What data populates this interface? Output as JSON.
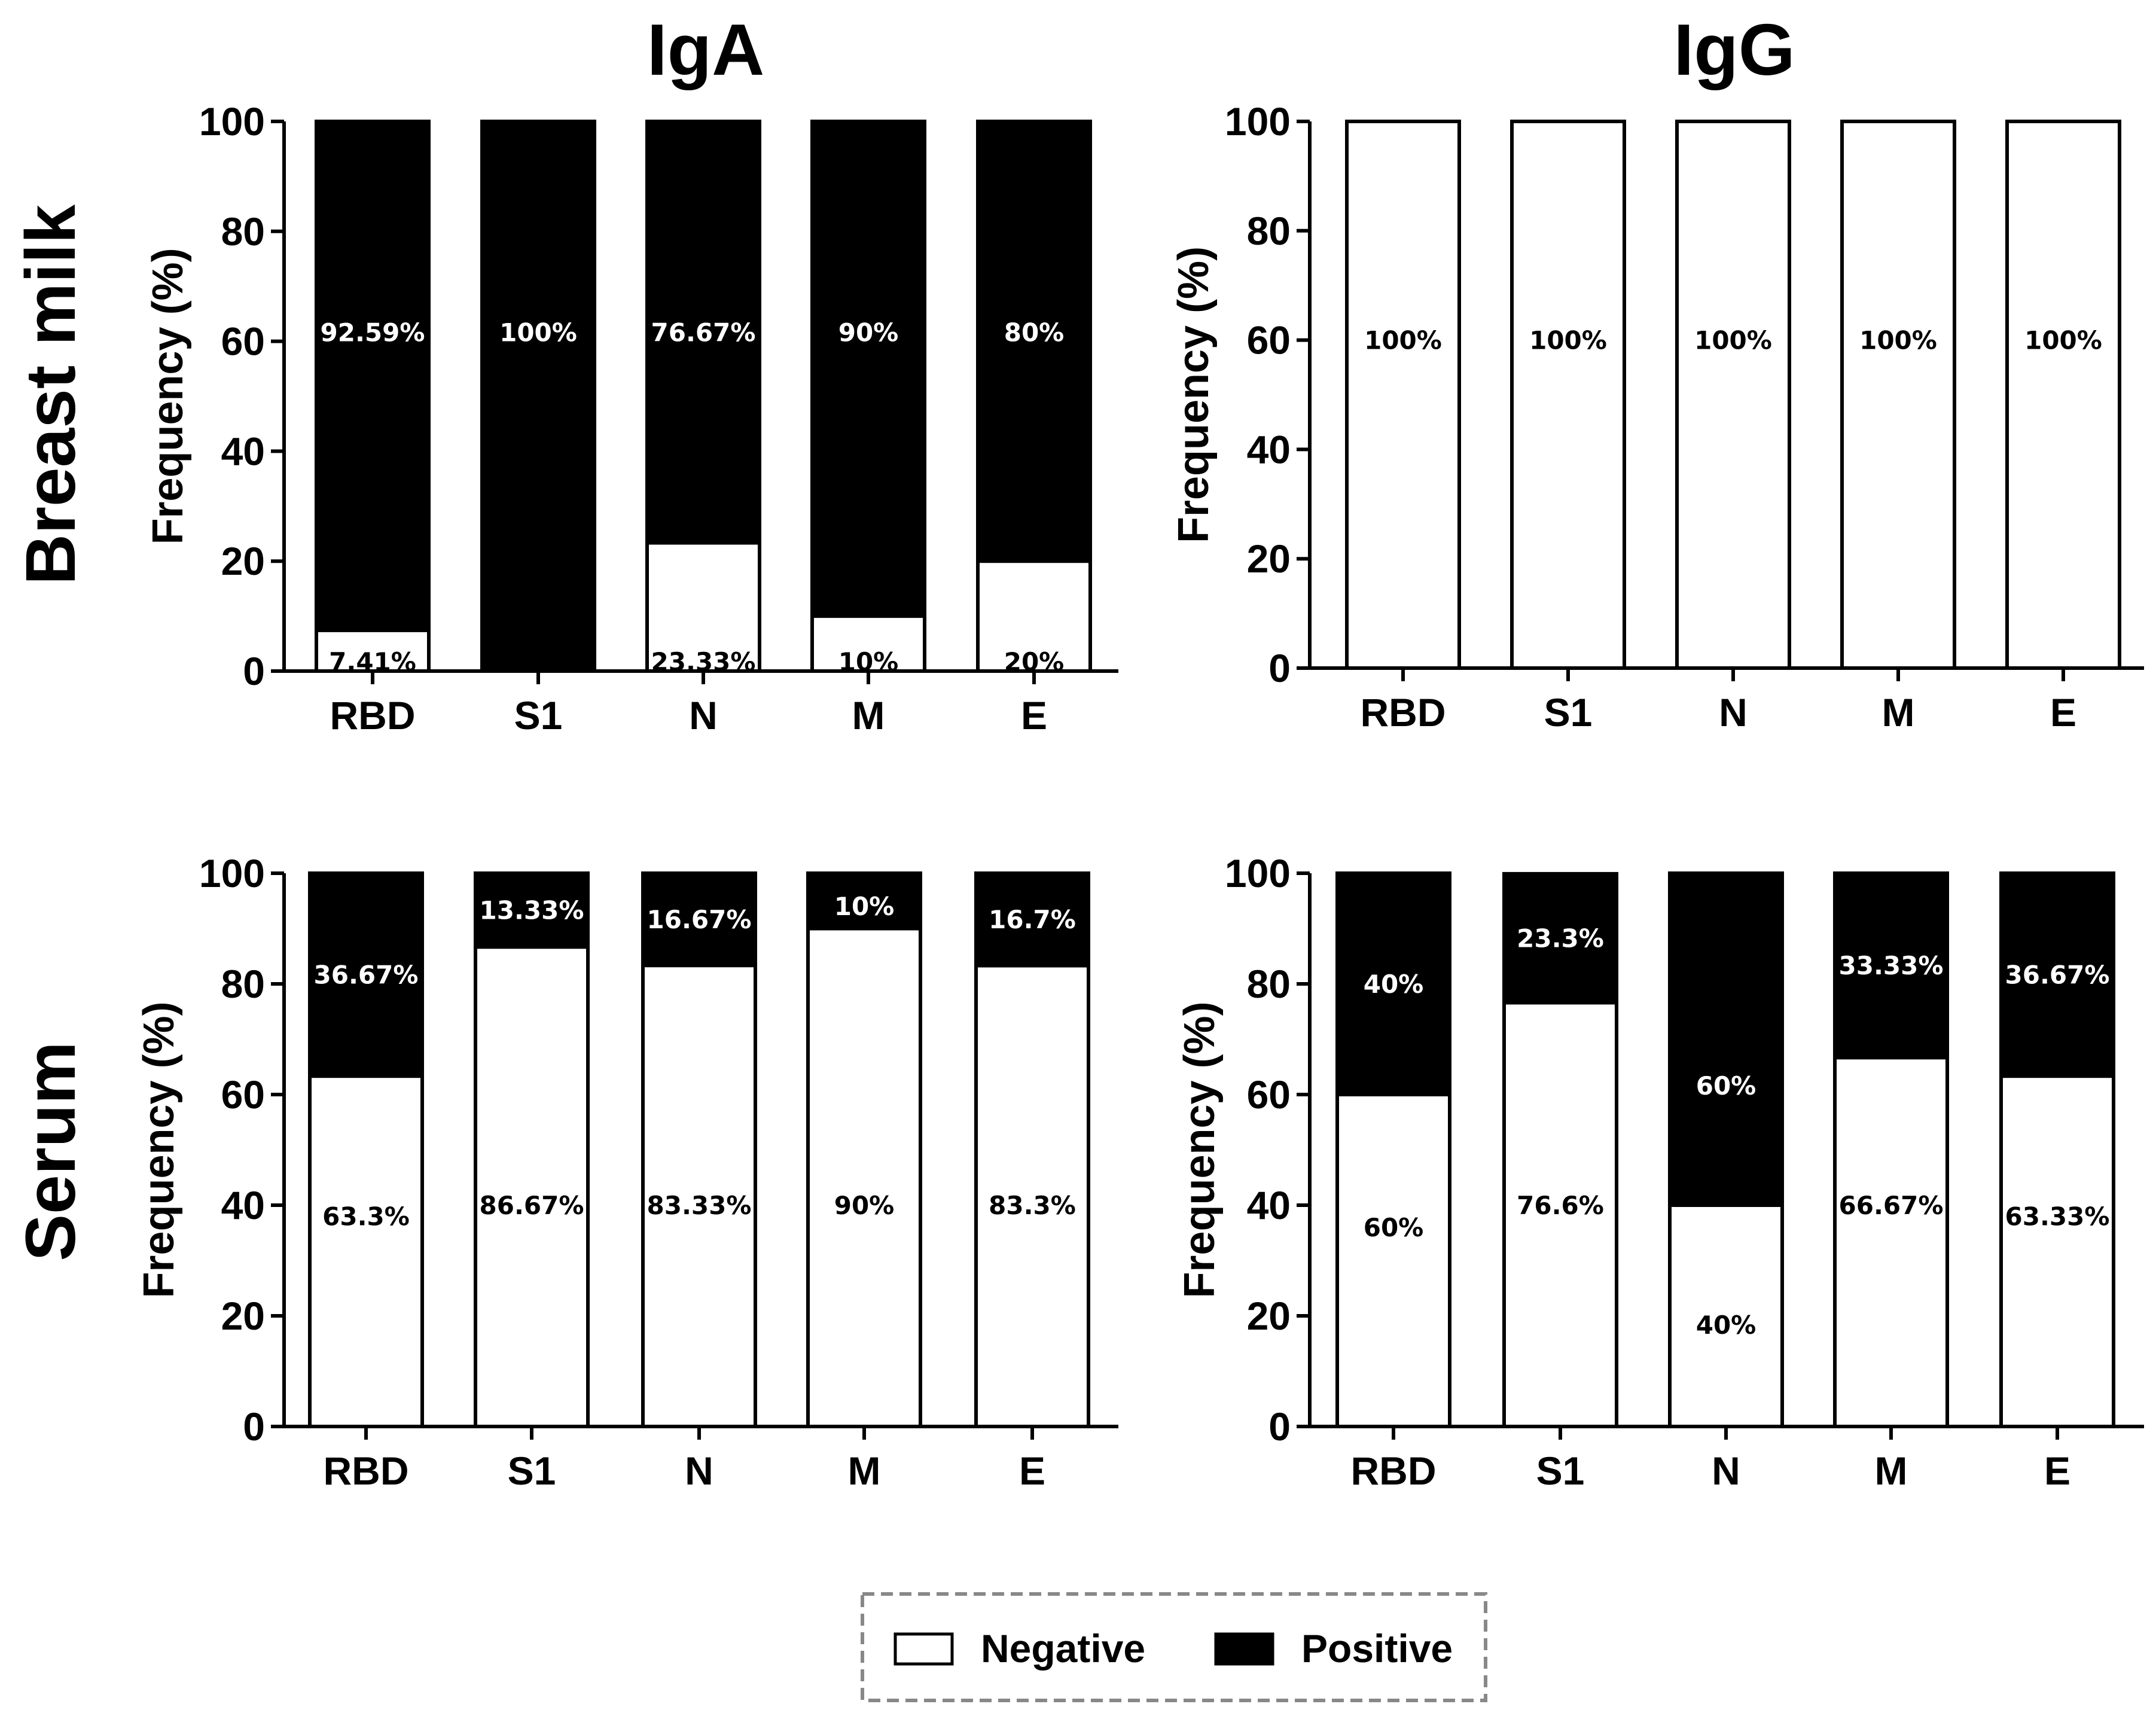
{
  "figure": {
    "column_titles": [
      "IgA",
      "IgG"
    ],
    "row_titles": [
      "Breast milk",
      "Serum"
    ],
    "legend": {
      "items": [
        {
          "label": "Negative",
          "color": "#ffffff"
        },
        {
          "label": "Positive",
          "color": "#000000"
        }
      ]
    }
  },
  "chart_data": [
    {
      "type": "bar",
      "stacked": true,
      "title": "IgA",
      "row": "Breast milk",
      "ylabel": "Frequency (%)",
      "xlabel": "",
      "ylim": [
        0,
        100
      ],
      "yticks": [
        0,
        20,
        40,
        60,
        80,
        100
      ],
      "categories": [
        "RBD",
        "S1",
        "N",
        "M",
        "E"
      ],
      "series": [
        {
          "name": "Negative",
          "values": [
            7.41,
            0,
            23.33,
            10,
            20
          ],
          "labels": [
            "7.41%",
            "",
            "23.33%",
            "10%",
            "20%"
          ]
        },
        {
          "name": "Positive",
          "values": [
            92.59,
            100,
            76.67,
            90,
            80
          ],
          "labels": [
            "92.59%",
            "100%",
            "76.67%",
            "90%",
            "80%"
          ]
        }
      ]
    },
    {
      "type": "bar",
      "stacked": true,
      "title": "IgG",
      "row": "Breast milk",
      "ylabel": "Frequency (%)",
      "xlabel": "",
      "ylim": [
        0,
        100
      ],
      "yticks": [
        0,
        20,
        40,
        60,
        80,
        100
      ],
      "categories": [
        "RBD",
        "S1",
        "N",
        "M",
        "E"
      ],
      "series": [
        {
          "name": "Negative",
          "values": [
            100,
            100,
            100,
            100,
            100
          ],
          "labels": [
            "100%",
            "100%",
            "100%",
            "100%",
            "100%"
          ]
        },
        {
          "name": "Positive",
          "values": [
            0,
            0,
            0,
            0,
            0
          ],
          "labels": [
            "",
            "",
            "",
            "",
            ""
          ]
        }
      ]
    },
    {
      "type": "bar",
      "stacked": true,
      "title": "IgA",
      "row": "Serum",
      "ylabel": "Frequency (%)",
      "xlabel": "",
      "ylim": [
        0,
        100
      ],
      "yticks": [
        0,
        20,
        40,
        60,
        80,
        100
      ],
      "categories": [
        "RBD",
        "S1",
        "N",
        "M",
        "E"
      ],
      "series": [
        {
          "name": "Negative",
          "values": [
            63.33,
            86.67,
            83.33,
            90,
            83.3
          ],
          "labels": [
            "63.3%",
            "86.67%",
            "83.33%",
            "90%",
            "83.3%"
          ]
        },
        {
          "name": "Positive",
          "values": [
            36.67,
            13.33,
            16.67,
            10,
            16.7
          ],
          "labels": [
            "36.67%",
            "13.33%",
            "16.67%",
            "10%",
            "16.7%"
          ]
        }
      ]
    },
    {
      "type": "bar",
      "stacked": true,
      "title": "IgG",
      "row": "Serum",
      "ylabel": "Frequency (%)",
      "xlabel": "",
      "ylim": [
        0,
        100
      ],
      "yticks": [
        0,
        20,
        40,
        60,
        80,
        100
      ],
      "categories": [
        "RBD",
        "S1",
        "N",
        "M",
        "E"
      ],
      "series": [
        {
          "name": "Negative",
          "values": [
            60,
            76.6,
            40,
            66.67,
            63.33
          ],
          "labels": [
            "60%",
            "76.6%",
            "40%",
            "66.67%",
            "63.33%"
          ]
        },
        {
          "name": "Positive",
          "values": [
            40,
            23.3,
            60,
            33.33,
            36.67
          ],
          "labels": [
            "40%",
            "23.3%",
            "60%",
            "33.33%",
            "36.67%"
          ]
        }
      ]
    }
  ]
}
